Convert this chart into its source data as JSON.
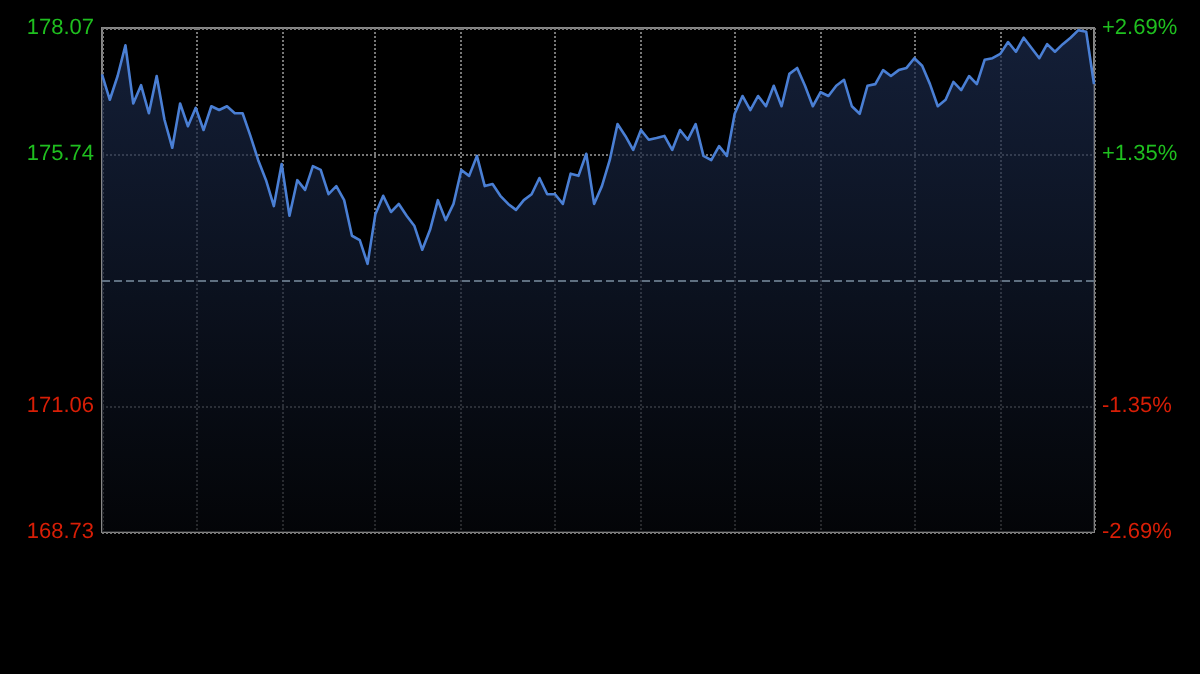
{
  "chart_data": {
    "type": "area",
    "categories": [
      null,
      null,
      null,
      null,
      null,
      null,
      null,
      null,
      null,
      null,
      null,
      null,
      null,
      null,
      null,
      null,
      null,
      null,
      null,
      null,
      null,
      null,
      null,
      null,
      null,
      null,
      null,
      null,
      null,
      null,
      null,
      null,
      null,
      null,
      null,
      null,
      null,
      null,
      null,
      null,
      null,
      null,
      null,
      null,
      null,
      null,
      null,
      null,
      null,
      null,
      null,
      null,
      null,
      null,
      null,
      null,
      null,
      null,
      null,
      null,
      null,
      null,
      null,
      null,
      null,
      null,
      null,
      null,
      null,
      null,
      null,
      null,
      null,
      null,
      null,
      null,
      null,
      null,
      null,
      null,
      null,
      null,
      null,
      null,
      null,
      null,
      null,
      null,
      null,
      null,
      null,
      null,
      null,
      null,
      null,
      null,
      null,
      null,
      null,
      null,
      null,
      null,
      null,
      null,
      null,
      null,
      null,
      null,
      null,
      null,
      null,
      null,
      null,
      null,
      null,
      null,
      null,
      null,
      null,
      null,
      null,
      null,
      null,
      null,
      null,
      null,
      null,
      null
    ],
    "series": [
      {
        "color": "#4a7fd4",
        "values": [
          177.21,
          176.74,
          177.18,
          177.75,
          176.67,
          177.01,
          176.49,
          177.18,
          176.37,
          175.85,
          176.67,
          176.25,
          176.59,
          176.18,
          176.62,
          176.55,
          176.62,
          176.49,
          176.49,
          176.07,
          175.62,
          175.25,
          174.77,
          175.55,
          174.59,
          175.25,
          175.07,
          175.51,
          175.44,
          174.99,
          175.14,
          174.88,
          174.22,
          174.14,
          173.7,
          174.62,
          174.96,
          174.66,
          174.81,
          174.59,
          174.4,
          173.96,
          174.33,
          174.88,
          174.51,
          174.81,
          175.44,
          175.33,
          175.7,
          175.14,
          175.18,
          174.96,
          174.81,
          174.7,
          174.88,
          174.99,
          175.29,
          174.99,
          174.99,
          174.81,
          175.37,
          175.33,
          175.74,
          174.81,
          175.14,
          175.62,
          176.29,
          176.07,
          175.81,
          176.18,
          176.0,
          176.03,
          176.07,
          175.81,
          176.18,
          176.0,
          176.29,
          175.7,
          175.62,
          175.88,
          175.7,
          176.48,
          176.81,
          176.55,
          176.81,
          176.62,
          177.0,
          176.62,
          177.22,
          177.33,
          177.0,
          176.62,
          176.88,
          176.81,
          177.0,
          177.11,
          176.62,
          176.48,
          177.0,
          177.03,
          177.29,
          177.18,
          177.29,
          177.33,
          177.51,
          177.37,
          177.03,
          176.62,
          176.74,
          177.07,
          176.92,
          177.18,
          177.03,
          177.48,
          177.51,
          177.59,
          177.81,
          177.63,
          177.89,
          177.7,
          177.51,
          177.77,
          177.63,
          177.77,
          177.89,
          178.03,
          178.0,
          177.03
        ]
      }
    ],
    "ylim": [
      168.73,
      178.07
    ],
    "yticks": [
      168.73,
      171.06,
      175.74,
      178.07
    ],
    "y2lim": [
      -2.69,
      2.69
    ],
    "y2ticks": [
      {
        "value": -2.69,
        "label": "-2.69%"
      },
      {
        "value": -1.35,
        "label": "-1.35%"
      },
      {
        "value": 1.35,
        "label": "+1.35%"
      },
      {
        "value": 2.69,
        "label": "+2.69%"
      }
    ],
    "ref_lines": [
      {
        "axis": "y",
        "value": 173.4,
        "color": "#5f6f80",
        "line_style": "dashed"
      }
    ],
    "grid": true,
    "tick_labels": "y",
    "line_style": "solid"
  }
}
